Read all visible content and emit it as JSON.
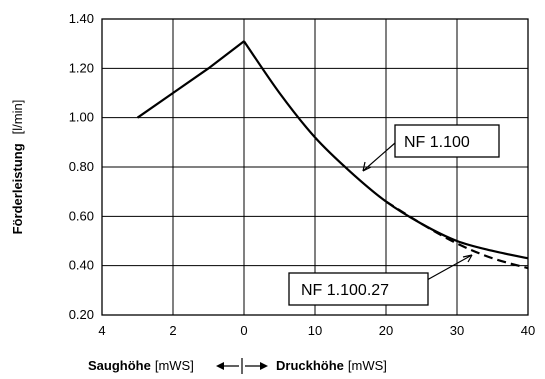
{
  "chart_data": {
    "type": "line",
    "ylabel_main": "Förderleistung",
    "ylabel_unit": "[l/min]",
    "ylim": [
      0.2,
      1.4
    ],
    "y_ticks": [
      "0.20",
      "0.40",
      "0.60",
      "0.80",
      "1.00",
      "1.20",
      "1.40"
    ],
    "x_ticks": [
      "4",
      "2",
      "0",
      "10",
      "20",
      "30",
      "40"
    ],
    "grid": true,
    "xlabel_suction": "Saughöhe",
    "xlabel_suction_unit": "[mWS]",
    "xlabel_pressure": "Druckhöhe",
    "xlabel_pressure_unit": "[mWS]",
    "suction_range_mWS": [
      0,
      4
    ],
    "pressure_range_mWS": [
      0,
      40
    ],
    "series": [
      {
        "name": "NF 1.100",
        "style": "solid",
        "suction_points": [
          [
            3,
            1.0
          ],
          [
            2,
            1.1
          ],
          [
            1,
            1.2
          ],
          [
            0,
            1.31
          ]
        ],
        "pressure_points": [
          [
            0,
            1.31
          ],
          [
            5,
            1.1
          ],
          [
            10,
            0.92
          ],
          [
            15,
            0.78
          ],
          [
            20,
            0.66
          ],
          [
            25,
            0.57
          ],
          [
            30,
            0.5
          ],
          [
            35,
            0.46
          ],
          [
            40,
            0.43
          ]
        ]
      },
      {
        "name": "NF 1.100.27",
        "style": "dashed",
        "suction_points": [],
        "pressure_points": [
          [
            20,
            0.66
          ],
          [
            25,
            0.57
          ],
          [
            30,
            0.49
          ],
          [
            35,
            0.43
          ],
          [
            40,
            0.39
          ]
        ]
      }
    ]
  }
}
